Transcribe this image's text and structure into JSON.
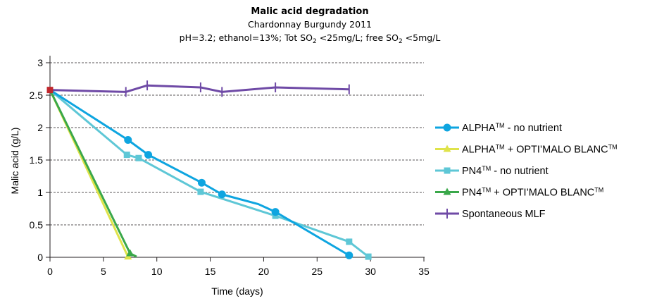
{
  "chart_data": {
    "type": "line",
    "title": "Malic acid degradation",
    "subtitle": "Chardonnay Burgundy 2011",
    "conditions": {
      "prefix": "pH=3.2; ethanol=13%; Tot SO",
      "mid": " <25mg/L; free SO",
      "suffix": " <5mg/L",
      "subscript": "2"
    },
    "xlabel": "Time (days)",
    "ylabel": "Malic acid (g/L)",
    "xlim": [
      0,
      35
    ],
    "ylim": [
      0,
      3
    ],
    "xticks": [
      "0",
      "5",
      "10",
      "15",
      "20",
      "25",
      "30",
      "35"
    ],
    "yticks": [
      "0",
      "0.5",
      "1",
      "1.5",
      "2",
      "2.5",
      "3"
    ],
    "grid": "horizontal dashed",
    "legend_position": "right",
    "start_point": {
      "x": 0,
      "y": 2.58,
      "color": "#c1272d"
    },
    "series": [
      {
        "name": "ALPHA™ - no nutrient",
        "legend": {
          "base": "ALPHA",
          "sup": "TM",
          "rest": " - no nutrient"
        },
        "color": "#0ea5e0",
        "marker": "circle",
        "points": [
          [
            0,
            2.58
          ],
          [
            7.3,
            1.81
          ],
          [
            9.2,
            1.58
          ],
          [
            14.2,
            1.15
          ],
          [
            16.1,
            0.97
          ],
          [
            19.5,
            0.82
          ],
          [
            21.1,
            0.7
          ],
          [
            28,
            0.03
          ]
        ]
      },
      {
        "name": "ALPHA™ + OPTI'MALO BLANC™",
        "legend": {
          "base": "ALPHA",
          "sup": "TM",
          "rest": " + OPTI’MALO BLANC",
          "sup2": "TM"
        },
        "color": "#dfe34a",
        "marker": "triangle",
        "points": [
          [
            0,
            2.58
          ],
          [
            7.3,
            0.01
          ]
        ]
      },
      {
        "name": "PN4™ - no nutrient",
        "legend": {
          "base": "PN4",
          "sup": "TM",
          "rest": " - no nutrient"
        },
        "color": "#5ec7d6",
        "marker": "square",
        "points": [
          [
            0,
            2.58
          ],
          [
            7.2,
            1.58
          ],
          [
            8.3,
            1.53
          ],
          [
            14.1,
            1.01
          ],
          [
            21.1,
            0.64
          ],
          [
            28,
            0.24
          ],
          [
            29.8,
            0.01
          ]
        ]
      },
      {
        "name": "PN4™ + OPTI'MALO BLANC™",
        "legend": {
          "base": "PN4",
          "sup": "TM",
          "rest": " + OPTI’MALO BLANC",
          "sup2": "TM"
        },
        "color": "#3aa84a",
        "marker": "triangle",
        "points": [
          [
            0,
            2.58
          ],
          [
            7.5,
            0.06
          ],
          [
            8.1,
            0.01
          ]
        ]
      },
      {
        "name": "Spontaneous MLF",
        "legend": {
          "base": "Spontaneous MLF"
        },
        "color": "#6f4aa6",
        "marker": "tick",
        "points": [
          [
            0,
            2.58
          ],
          [
            7.1,
            2.55
          ],
          [
            9.1,
            2.65
          ],
          [
            14.1,
            2.62
          ],
          [
            16.1,
            2.55
          ],
          [
            21.1,
            2.62
          ],
          [
            28,
            2.59
          ]
        ]
      }
    ]
  }
}
